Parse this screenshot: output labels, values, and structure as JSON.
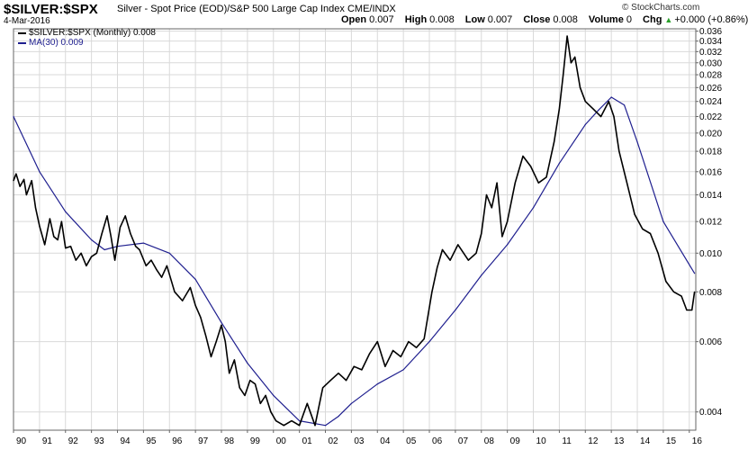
{
  "header": {
    "symbol": "$SILVER:$SPX",
    "description": "Silver - Spot Price (EOD)/S&P 500 Large Cap Index  CME/INDX",
    "date": "4-Mar-2016",
    "watermark": "© StockCharts.com",
    "ohlc": [
      {
        "label": "Open",
        "value": "0.007"
      },
      {
        "label": "High",
        "value": "0.008"
      },
      {
        "label": "Low",
        "value": "0.007"
      },
      {
        "label": "Close",
        "value": "0.008"
      },
      {
        "label": "Volume",
        "value": "0"
      },
      {
        "label": "Chg",
        "value": "+0.000 (+0.86%)"
      }
    ]
  },
  "legend": {
    "series_label": "$SILVER:$SPX (Monthly) 0.008",
    "ma_label": "MA(30) 0.009"
  },
  "colors": {
    "price": "#000000",
    "ma": "#1f1f8f",
    "grid": "#d9d9d9",
    "up_arrow": "#2aa02a"
  },
  "chart_data": {
    "type": "line",
    "title": "$SILVER:$SPX",
    "xlabel": "",
    "ylabel": "",
    "y_scale": "log",
    "ylim": [
      0.0036,
      0.0365
    ],
    "xlim": [
      1990.0,
      2016.25
    ],
    "grid": true,
    "y_ticks": [
      "0.004",
      "0.006",
      "0.008",
      "0.010",
      "0.012",
      "0.014",
      "0.016",
      "0.018",
      "0.020",
      "0.022",
      "0.024",
      "0.026",
      "0.028",
      "0.030",
      "0.032",
      "0.034",
      "0.036"
    ],
    "x_ticks": [
      "90",
      "91",
      "92",
      "93",
      "94",
      "95",
      "96",
      "97",
      "98",
      "99",
      "00",
      "01",
      "02",
      "03",
      "04",
      "05",
      "06",
      "07",
      "08",
      "09",
      "10",
      "11",
      "12",
      "13",
      "14",
      "15",
      "16"
    ],
    "series": [
      {
        "name": "$SILVER:$SPX (Monthly)",
        "x": [
          1990.0,
          1990.1,
          1990.25,
          1990.4,
          1990.5,
          1990.7,
          1990.85,
          1991.0,
          1991.2,
          1991.4,
          1991.55,
          1991.7,
          1991.85,
          1992.0,
          1992.2,
          1992.4,
          1992.6,
          1992.8,
          1993.0,
          1993.2,
          1993.4,
          1993.6,
          1993.75,
          1993.9,
          1994.1,
          1994.3,
          1994.5,
          1994.7,
          1994.85,
          1995.1,
          1995.3,
          1995.5,
          1995.7,
          1995.9,
          1996.2,
          1996.5,
          1996.8,
          1997.0,
          1997.2,
          1997.4,
          1997.6,
          1997.8,
          1998.0,
          1998.15,
          1998.3,
          1998.5,
          1998.7,
          1998.9,
          1999.1,
          1999.3,
          1999.5,
          1999.7,
          1999.9,
          2000.1,
          2000.4,
          2000.7,
          2001.0,
          2001.3,
          2001.6,
          2001.9,
          2002.2,
          2002.5,
          2002.8,
          2003.1,
          2003.4,
          2003.7,
          2004.0,
          2004.3,
          2004.6,
          2004.9,
          2005.2,
          2005.5,
          2005.8,
          2006.1,
          2006.3,
          2006.5,
          2006.8,
          2007.1,
          2007.5,
          2007.8,
          2008.0,
          2008.2,
          2008.4,
          2008.6,
          2008.8,
          2009.0,
          2009.3,
          2009.6,
          2009.9,
          2010.2,
          2010.5,
          2010.8,
          2011.0,
          2011.15,
          2011.3,
          2011.45,
          2011.6,
          2011.8,
          2012.0,
          2012.3,
          2012.6,
          2012.9,
          2013.1,
          2013.3,
          2013.6,
          2013.9,
          2014.2,
          2014.5,
          2014.8,
          2015.1,
          2015.4,
          2015.7,
          2015.9,
          2016.1,
          2016.2
        ],
        "values": [
          0.0152,
          0.0158,
          0.0147,
          0.0153,
          0.014,
          0.0152,
          0.013,
          0.0117,
          0.0105,
          0.0122,
          0.011,
          0.0108,
          0.012,
          0.0103,
          0.0104,
          0.0096,
          0.01,
          0.0093,
          0.0098,
          0.01,
          0.0112,
          0.0124,
          0.011,
          0.0096,
          0.0116,
          0.0124,
          0.0112,
          0.0104,
          0.0102,
          0.0093,
          0.0096,
          0.0091,
          0.0087,
          0.0093,
          0.008,
          0.0076,
          0.0082,
          0.0074,
          0.0069,
          0.0062,
          0.0055,
          0.006,
          0.0066,
          0.006,
          0.005,
          0.0054,
          0.0046,
          0.0044,
          0.0048,
          0.0047,
          0.0042,
          0.0044,
          0.004,
          0.0038,
          0.0037,
          0.0038,
          0.0037,
          0.0042,
          0.0037,
          0.0046,
          0.0048,
          0.005,
          0.0048,
          0.0052,
          0.0051,
          0.0056,
          0.006,
          0.0052,
          0.0057,
          0.0055,
          0.006,
          0.0058,
          0.0061,
          0.008,
          0.0092,
          0.0102,
          0.0096,
          0.0105,
          0.0096,
          0.01,
          0.0112,
          0.014,
          0.013,
          0.015,
          0.011,
          0.012,
          0.015,
          0.0175,
          0.0165,
          0.015,
          0.0155,
          0.019,
          0.023,
          0.028,
          0.035,
          0.03,
          0.031,
          0.026,
          0.024,
          0.023,
          0.022,
          0.024,
          0.022,
          0.018,
          0.015,
          0.0125,
          0.0115,
          0.0112,
          0.01,
          0.0085,
          0.008,
          0.0078,
          0.0072,
          0.0072,
          0.008
        ]
      },
      {
        "name": "MA(30)",
        "x": [
          1990.0,
          1991.0,
          1992.0,
          1993.0,
          1993.5,
          1994.0,
          1995.0,
          1996.0,
          1997.0,
          1998.0,
          1999.0,
          2000.0,
          2001.0,
          2002.0,
          2002.5,
          2003.0,
          2004.0,
          2005.0,
          2006.0,
          2007.0,
          2008.0,
          2009.0,
          2010.0,
          2011.0,
          2012.0,
          2012.5,
          2013.0,
          2013.5,
          2014.0,
          2015.0,
          2016.2
        ],
        "values": [
          0.022,
          0.016,
          0.0127,
          0.0108,
          0.0102,
          0.0104,
          0.0106,
          0.01,
          0.0086,
          0.0067,
          0.0053,
          0.0044,
          0.0038,
          0.0037,
          0.0039,
          0.0042,
          0.0047,
          0.0051,
          0.006,
          0.0072,
          0.0088,
          0.0105,
          0.013,
          0.0168,
          0.021,
          0.0228,
          0.0246,
          0.0235,
          0.019,
          0.012,
          0.0089
        ]
      }
    ]
  }
}
